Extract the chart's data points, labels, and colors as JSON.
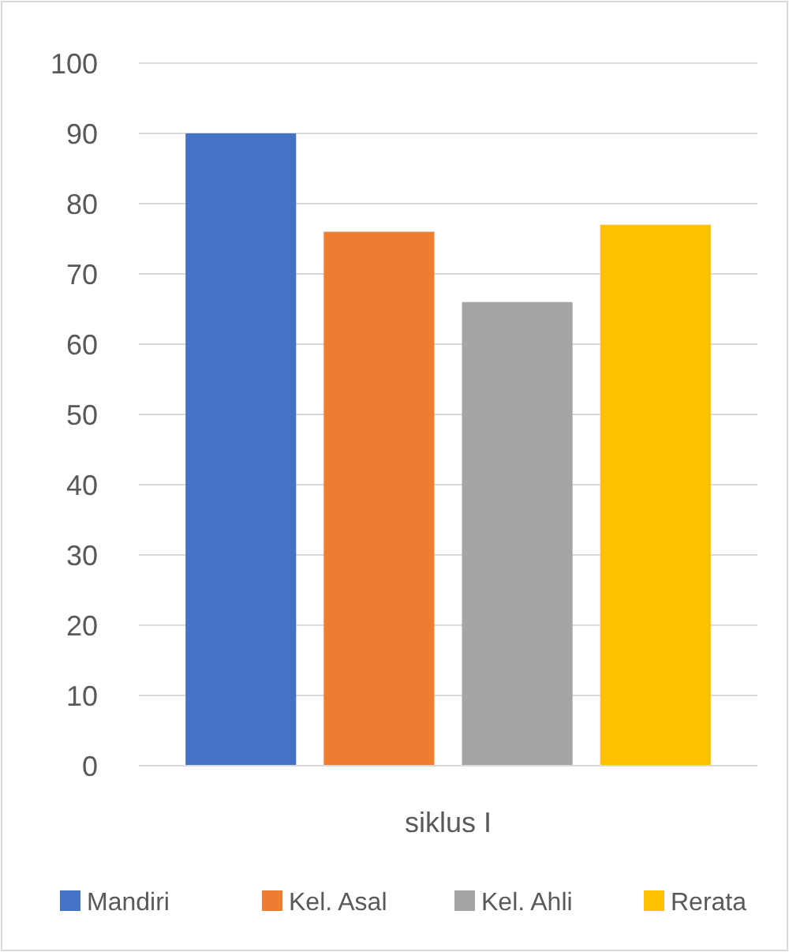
{
  "chart_data": {
    "type": "bar",
    "categories": [
      "siklus I"
    ],
    "series": [
      {
        "name": "Mandiri",
        "color": "#4472c4",
        "values": [
          90
        ]
      },
      {
        "name": "Kel. Asal",
        "color": "#ed7d31",
        "values": [
          76
        ]
      },
      {
        "name": "Kel. Ahli",
        "color": "#a5a5a5",
        "values": [
          66
        ]
      },
      {
        "name": "Rerata",
        "color": "#ffc000",
        "values": [
          77
        ]
      }
    ],
    "ylim": [
      0,
      100
    ],
    "yticks": [
      0,
      10,
      20,
      30,
      40,
      50,
      60,
      70,
      80,
      90,
      100
    ],
    "grid": "y",
    "legend": "bottom"
  }
}
